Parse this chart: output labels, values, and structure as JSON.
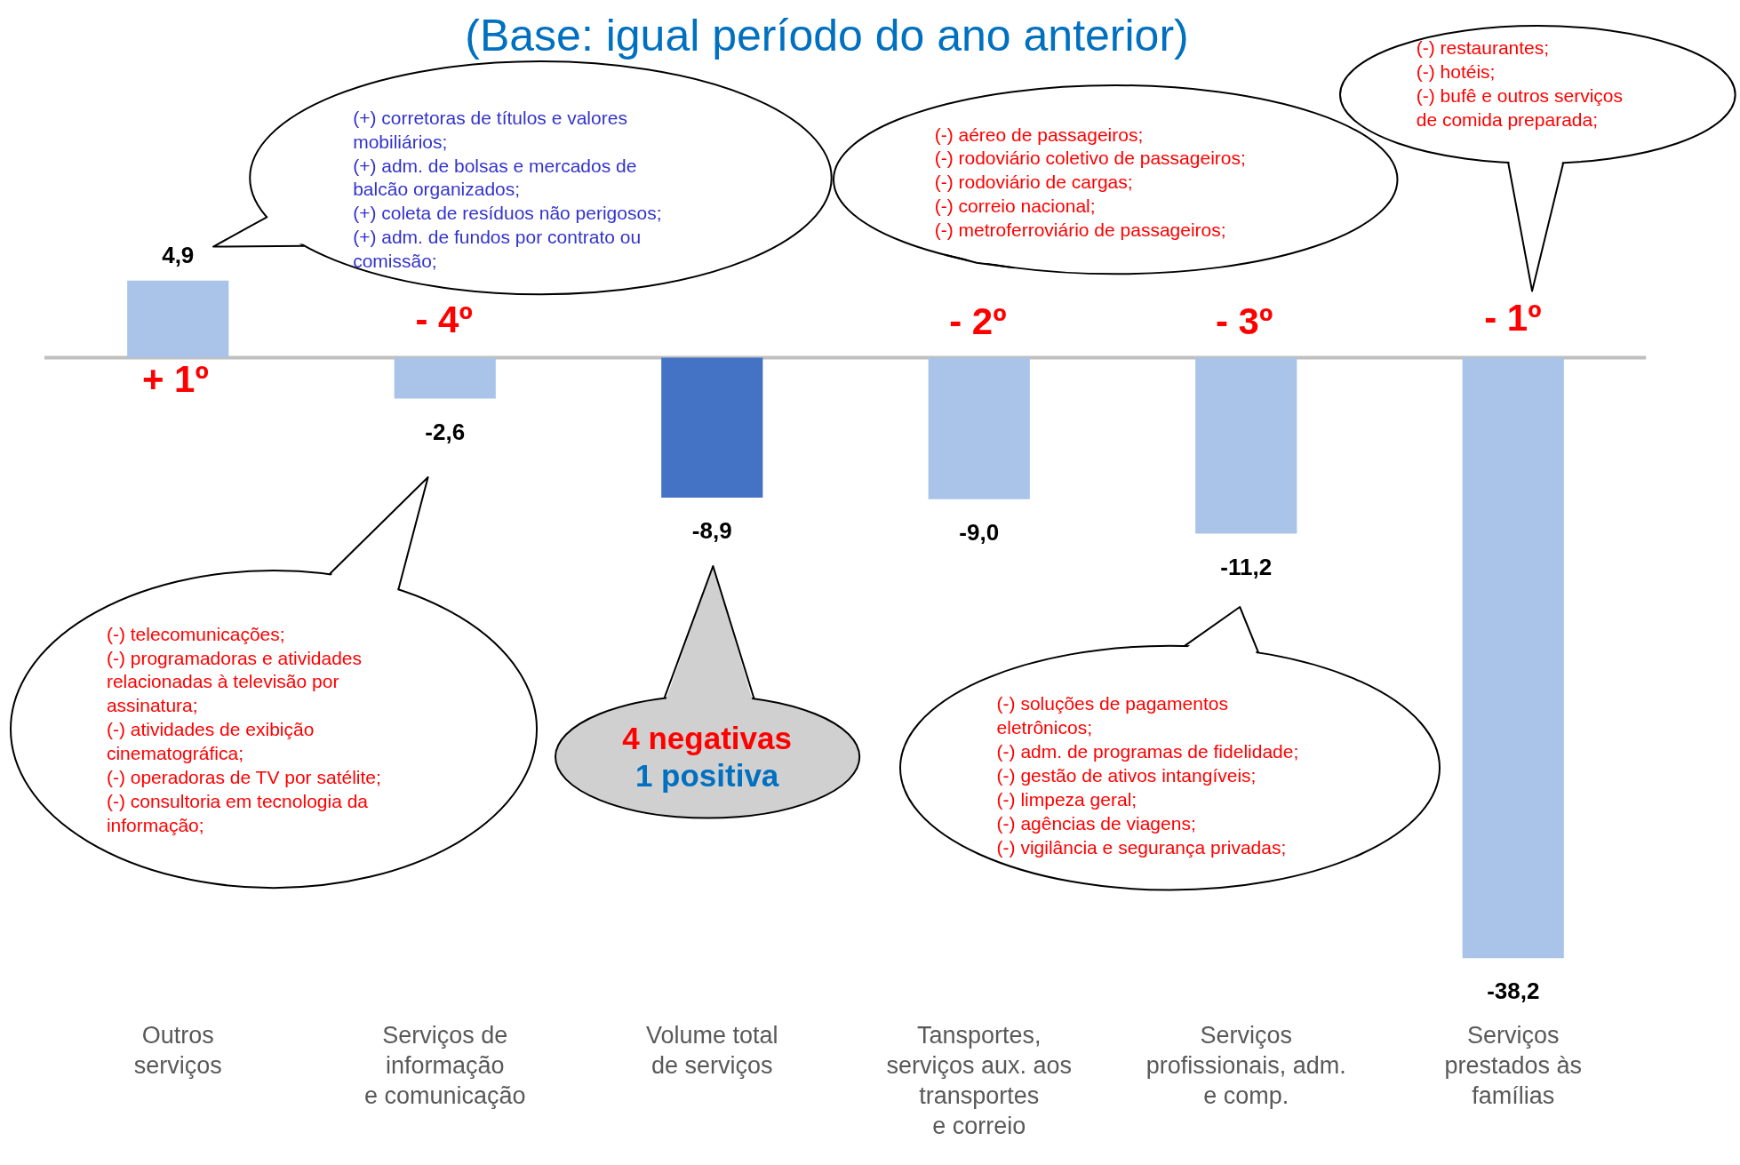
{
  "chart_data": {
    "type": "bar",
    "title": "(Base: igual período do ano anterior)",
    "categories": [
      "Outros\nserviços",
      "Serviços de\ninformação\ne comunicação",
      "Volume total\nde serviços",
      "Tansportes,\nserviços aux. aos\ntransportes\ne correio",
      "Serviços\nprofissionais, adm.\ne comp.",
      "Serviços\nprestados às\nfamílias"
    ],
    "values": [
      4.9,
      -2.6,
      -8.9,
      -9.0,
      -11.2,
      -38.2
    ],
    "value_labels": [
      "4,9",
      "-2,6",
      "-8,9",
      "-9,0",
      "-11,2",
      "-38,2"
    ],
    "colors": [
      "#a9c4e8",
      "#a9c4e8",
      "#4472c4",
      "#a9c4e8",
      "#a9c4e8",
      "#a9c4e8"
    ],
    "annotations": [
      "+ 1º",
      "- 4º",
      "- 2º",
      "- 3º",
      "- 1º",
      "(+) corretoras de títulos e valores\nmobiliários;\n(+) adm. de bolsas e mercados de\nbalcão organizados;\n(+) coleta de resíduos não perigosos;\n(+) adm. de fundos por contrato ou\ncomissão;",
      "(-) telecomunicações;\n(-) programadoras e atividades\nrelacionadas à televisão por\nassinatura;\n(-) atividades de exibição\ncinematográfica;\n(-) operadoras de TV por satélite;\n(-) consultoria em tecnologia da\ninformação;",
      "4 negativas\n1 positiva",
      "(-) aéreo de passageiros;\n(-) rodoviário coletivo de passageiros;\n(-) rodoviário de cargas;\n(-) correio nacional;\n(-) metroferroviário de passageiros;",
      "(-) soluções de pagamentos\neletrônicos;\n(-) adm. de programas de fidelidade;\n(-) gestão de ativos intangíveis;\n(-) limpeza geral;\n(-) agências de viagens;\n(-) vigilância e segurança privadas;",
      "(-) restaurantes;\n(-) hotéis;\n(-) bufê e outros serviços\nde comida preparada;"
    ]
  }
}
